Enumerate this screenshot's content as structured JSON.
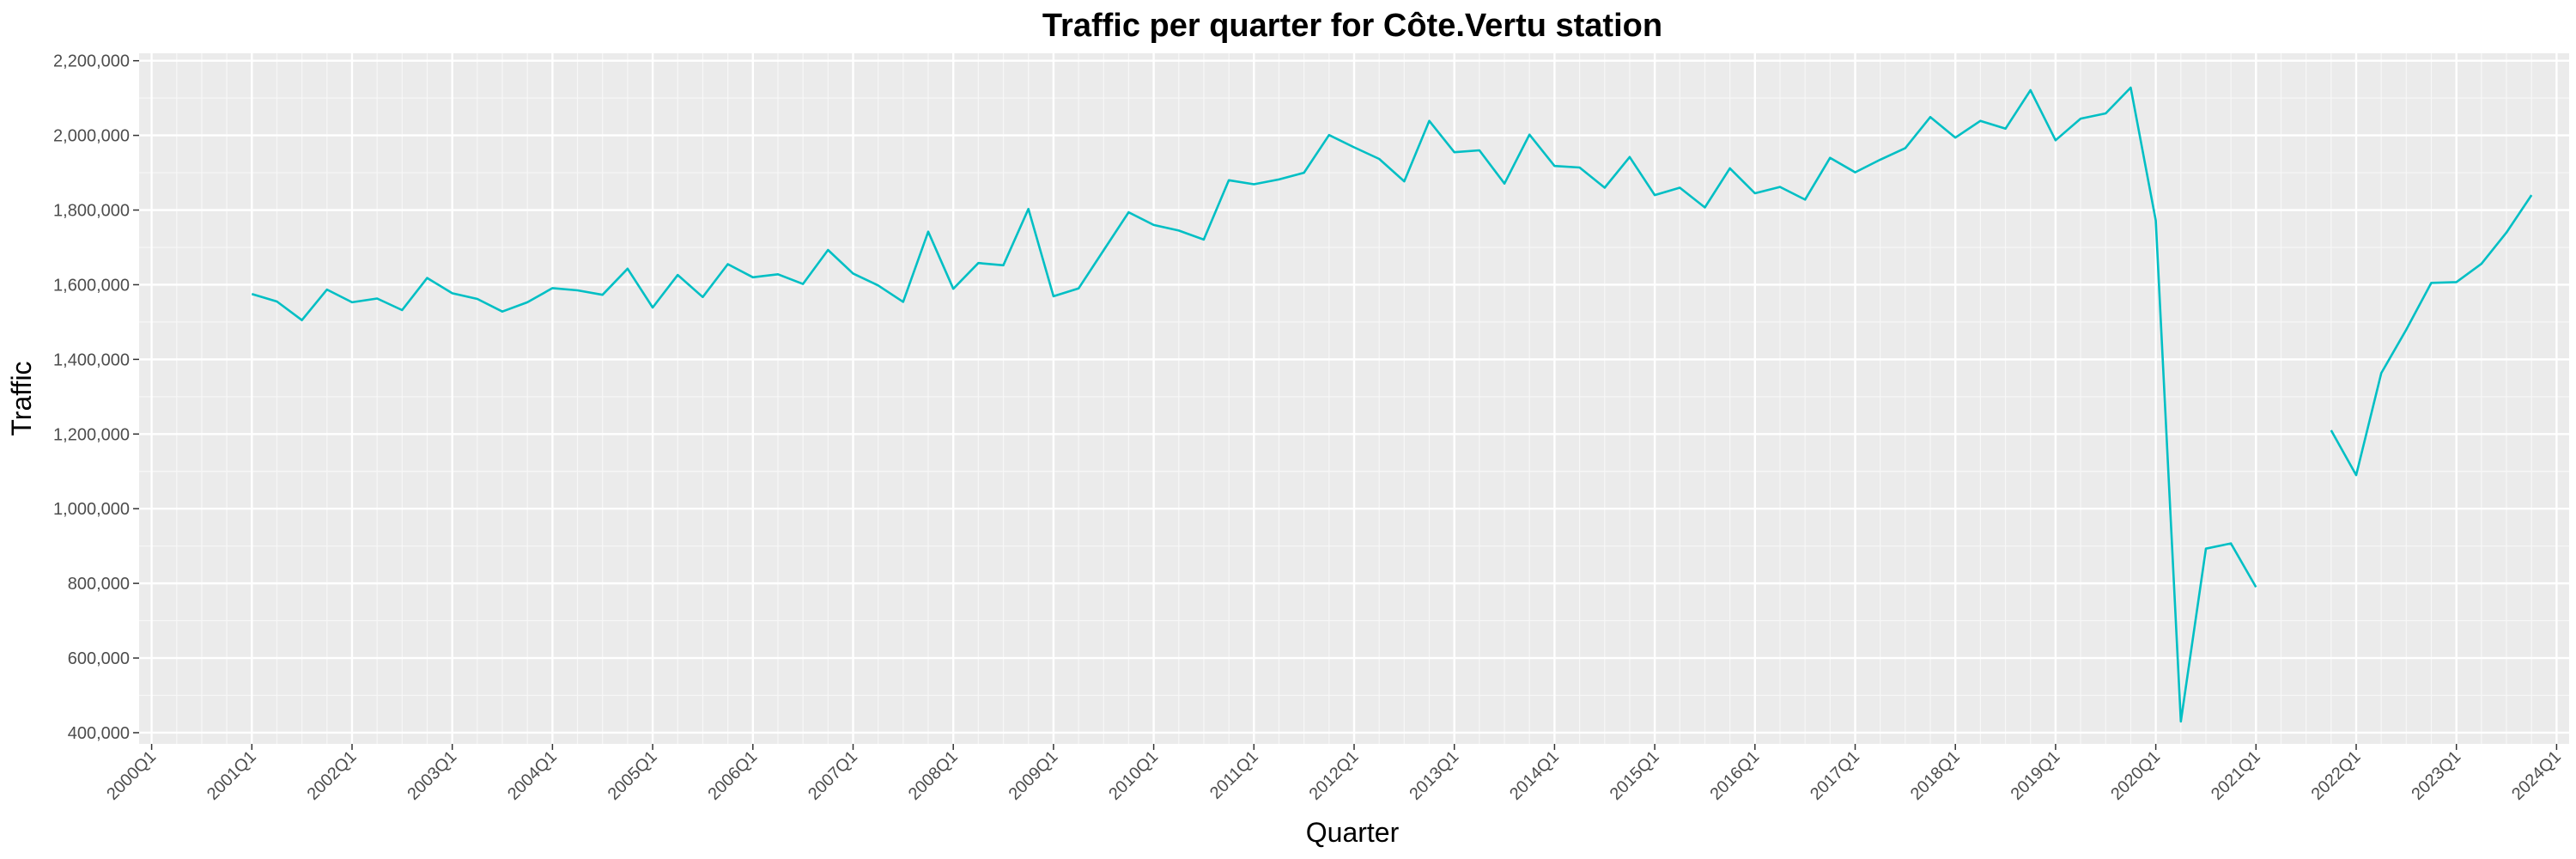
{
  "chart_data": {
    "type": "line",
    "title": "Traffic per quarter for Côte.Vertu station",
    "xlabel": "Quarter",
    "ylabel": "Traffic",
    "x_tick_labels": [
      "2000Q1",
      "2001Q1",
      "2002Q1",
      "2003Q1",
      "2004Q1",
      "2005Q1",
      "2006Q1",
      "2007Q1",
      "2008Q1",
      "2009Q1",
      "2010Q1",
      "2011Q1",
      "2012Q1",
      "2013Q1",
      "2014Q1",
      "2015Q1",
      "2016Q1",
      "2017Q1",
      "2018Q1",
      "2019Q1",
      "2020Q1",
      "2021Q1",
      "2022Q1",
      "2023Q1",
      "2024Q1"
    ],
    "y_ticks": [
      400000,
      600000,
      800000,
      1000000,
      1200000,
      1400000,
      1600000,
      1800000,
      2000000,
      2200000
    ],
    "y_tick_labels": [
      "400,000",
      "600,000",
      "800,000",
      "1,000,000",
      "1,200,000",
      "1,400,000",
      "1,600,000",
      "1,800,000",
      "2,000,000",
      "2,200,000"
    ],
    "xlim": [
      "2000Q1",
      "2024Q1"
    ],
    "ylim": [
      370000,
      2220000
    ],
    "grid": true,
    "line_color": "#00BFC4",
    "panel_color": "#EBEBEB",
    "series": [
      {
        "x": [
          "2001Q1",
          "2001Q2",
          "2001Q3",
          "2001Q4",
          "2002Q1",
          "2002Q2",
          "2002Q3",
          "2002Q4",
          "2003Q1",
          "2003Q2",
          "2003Q3",
          "2003Q4",
          "2004Q1",
          "2004Q2",
          "2004Q3",
          "2004Q4",
          "2005Q1",
          "2005Q2",
          "2005Q3",
          "2005Q4",
          "2006Q1",
          "2006Q2",
          "2006Q3",
          "2006Q4",
          "2007Q1",
          "2007Q2",
          "2007Q3",
          "2007Q4",
          "2008Q1",
          "2008Q2",
          "2008Q3",
          "2008Q4",
          "2009Q1",
          "2009Q2",
          "2009Q3",
          "2009Q4",
          "2010Q1",
          "2010Q2",
          "2010Q3",
          "2010Q4",
          "2011Q1",
          "2011Q2",
          "2011Q3",
          "2011Q4",
          "2012Q1",
          "2012Q2",
          "2012Q3",
          "2012Q4",
          "2013Q1",
          "2013Q2",
          "2013Q3",
          "2013Q4",
          "2014Q1",
          "2014Q2",
          "2014Q3",
          "2014Q4",
          "2015Q1",
          "2015Q2",
          "2015Q3",
          "2015Q4",
          "2016Q1",
          "2016Q2",
          "2016Q3",
          "2016Q4",
          "2017Q1",
          "2017Q2",
          "2017Q3",
          "2017Q4",
          "2018Q1",
          "2018Q2",
          "2018Q3",
          "2018Q4",
          "2019Q1",
          "2019Q2",
          "2019Q3",
          "2019Q4",
          "2020Q1",
          "2020Q2",
          "2020Q3",
          "2020Q4",
          "2021Q1"
        ],
        "values": [
          1575000,
          1555000,
          1505000,
          1587000,
          1553000,
          1563000,
          1532000,
          1618000,
          1577000,
          1562000,
          1528000,
          1553000,
          1591000,
          1585000,
          1573000,
          1643000,
          1539000,
          1626000,
          1567000,
          1655000,
          1620000,
          1628000,
          1602000,
          1693000,
          1630000,
          1598000,
          1554000,
          1742000,
          1589000,
          1658000,
          1652000,
          1803000,
          1569000,
          1590000,
          1692000,
          1794000,
          1760000,
          1745000,
          1721000,
          1880000,
          1869000,
          1882000,
          1900000,
          2001000,
          1968000,
          1937000,
          1877000,
          2039000,
          1955000,
          1960000,
          1871000,
          2002000,
          1918000,
          1914000,
          1860000,
          1942000,
          1840000,
          1860000,
          1807000,
          1912000,
          1845000,
          1862000,
          1828000,
          1940000,
          1901000,
          1935000,
          1966000,
          2049000,
          1994000,
          2039000,
          2018000,
          2121000,
          1987000,
          2045000,
          2059000,
          2128000,
          1772000,
          430000,
          893000,
          907000,
          790000
        ]
      },
      {
        "x": [
          "2021Q4",
          "2022Q1",
          "2022Q2",
          "2022Q3",
          "2022Q4",
          "2023Q1",
          "2023Q2",
          "2023Q3",
          "2023Q4"
        ],
        "values": [
          1210000,
          1090000,
          1363000,
          1480000,
          1605000,
          1607000,
          1656000,
          1740000,
          1840000
        ]
      }
    ]
  }
}
